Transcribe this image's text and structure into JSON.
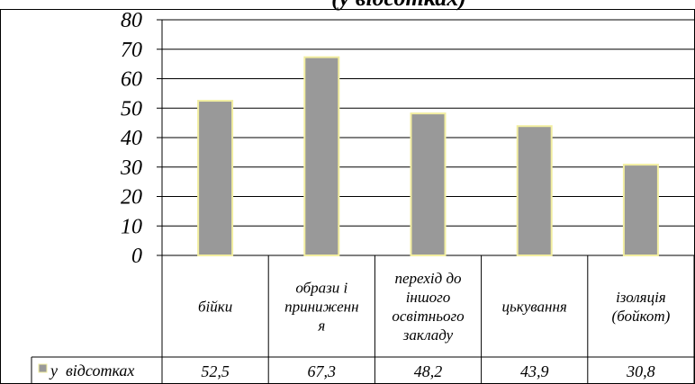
{
  "chart_data": {
    "type": "bar",
    "title": "(у відсотках)",
    "xlabel": "",
    "ylabel": "",
    "ylim": [
      0,
      80
    ],
    "yticks": [
      "0",
      "10",
      "20",
      "30",
      "40",
      "50",
      "60",
      "70",
      "80"
    ],
    "categories": [
      [
        "бійки"
      ],
      [
        "образи і",
        "приниженн",
        "я"
      ],
      [
        "перехід до",
        "іншого",
        "освітнього",
        "закладу"
      ],
      [
        "цькування"
      ],
      [
        "ізоляція",
        "(бойкот)"
      ]
    ],
    "series": [
      {
        "name": "у  відсотках",
        "values": [
          52.5,
          67.3,
          48.2,
          43.9,
          30.8
        ],
        "labels": [
          "52,5",
          "67,3",
          "48,2",
          "43,9",
          "30,8"
        ]
      }
    ],
    "grid": true,
    "legend": "data-table-left",
    "colors": {
      "bar": "#999999",
      "bar_edge": "#f2eea0",
      "axis": "#000000"
    }
  }
}
